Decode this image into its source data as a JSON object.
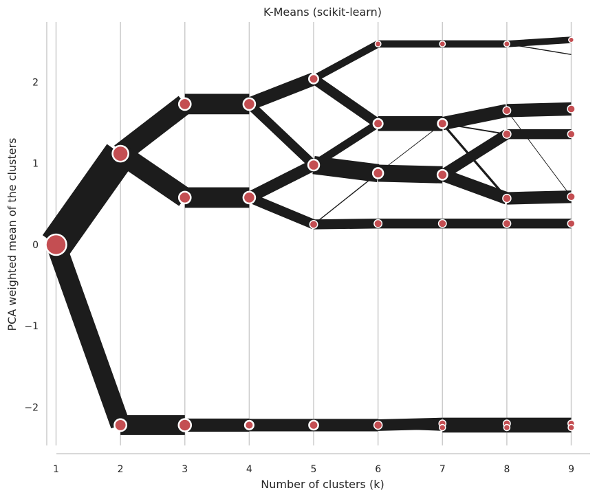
{
  "chart_data": {
    "type": "line",
    "title": "K-Means (scikit-learn)",
    "xlabel": "Number of clusters (k)",
    "ylabel": "PCA weighted mean of the clusters",
    "x_ticks": [
      "1",
      "2",
      "3",
      "4",
      "5",
      "6",
      "7",
      "8",
      "9"
    ],
    "y_ticks": [
      {
        "value": 2,
        "label": "2"
      },
      {
        "value": 1,
        "label": "1"
      },
      {
        "value": 0,
        "label": "0"
      },
      {
        "value": -1,
        "label": "−1"
      },
      {
        "value": -2,
        "label": "−2"
      }
    ],
    "xlim": [
      0.45,
      9.4
    ],
    "ylim": [
      -2.47,
      2.74
    ],
    "grid": "vertical",
    "colors": {
      "edge": "#1c1c1c",
      "node": "#c44e52",
      "node_outline": "#ffffff",
      "grid": "#cccccc",
      "axis": "#cccccc"
    },
    "nodes": [
      {
        "id": "1a",
        "k": 1,
        "y": 0.0,
        "size": 1.0
      },
      {
        "id": "2a",
        "k": 2,
        "y": 1.12,
        "size": 0.77
      },
      {
        "id": "2b",
        "k": 2,
        "y": -2.22,
        "size": 0.58
      },
      {
        "id": "3a",
        "k": 3,
        "y": 1.73,
        "size": 0.57
      },
      {
        "id": "3b",
        "k": 3,
        "y": 0.58,
        "size": 0.57
      },
      {
        "id": "3c",
        "k": 3,
        "y": -2.22,
        "size": 0.6
      },
      {
        "id": "4a",
        "k": 4,
        "y": 1.73,
        "size": 0.57
      },
      {
        "id": "4b",
        "k": 4,
        "y": 0.58,
        "size": 0.57
      },
      {
        "id": "4c",
        "k": 4,
        "y": -2.22,
        "size": 0.42
      },
      {
        "id": "5a",
        "k": 5,
        "y": 2.04,
        "size": 0.45
      },
      {
        "id": "5b",
        "k": 5,
        "y": 0.98,
        "size": 0.53
      },
      {
        "id": "5c",
        "k": 5,
        "y": 0.25,
        "size": 0.38
      },
      {
        "id": "5d",
        "k": 5,
        "y": -2.22,
        "size": 0.44
      },
      {
        "id": "6a",
        "k": 6,
        "y": 2.47,
        "size": 0.28
      },
      {
        "id": "6b",
        "k": 6,
        "y": 1.49,
        "size": 0.45
      },
      {
        "id": "6c",
        "k": 6,
        "y": 0.88,
        "size": 0.5
      },
      {
        "id": "6d",
        "k": 6,
        "y": 0.26,
        "size": 0.38
      },
      {
        "id": "6e",
        "k": 6,
        "y": -2.22,
        "size": 0.4
      },
      {
        "id": "7a",
        "k": 7,
        "y": 2.47,
        "size": 0.28
      },
      {
        "id": "7b",
        "k": 7,
        "y": 1.49,
        "size": 0.45
      },
      {
        "id": "7c",
        "k": 7,
        "y": 0.86,
        "size": 0.48
      },
      {
        "id": "7d",
        "k": 7,
        "y": 0.26,
        "size": 0.38
      },
      {
        "id": "7e",
        "k": 7,
        "y": -2.2,
        "size": 0.34
      },
      {
        "id": "7f",
        "k": 7,
        "y": -2.25,
        "size": 0.3
      },
      {
        "id": "8a",
        "k": 8,
        "y": 2.47,
        "size": 0.28
      },
      {
        "id": "8b",
        "k": 8,
        "y": 1.65,
        "size": 0.38
      },
      {
        "id": "8c",
        "k": 8,
        "y": 1.36,
        "size": 0.4
      },
      {
        "id": "8d",
        "k": 8,
        "y": 0.57,
        "size": 0.4
      },
      {
        "id": "8e",
        "k": 8,
        "y": 0.26,
        "size": 0.38
      },
      {
        "id": "8f",
        "k": 8,
        "y": -2.2,
        "size": 0.34
      },
      {
        "id": "8g",
        "k": 8,
        "y": -2.25,
        "size": 0.3
      },
      {
        "id": "9a",
        "k": 9,
        "y": 2.52,
        "size": 0.25
      },
      {
        "id": "9b",
        "k": 9,
        "y": 2.34,
        "size": 0.0
      },
      {
        "id": "9c",
        "k": 9,
        "y": 1.67,
        "size": 0.37
      },
      {
        "id": "9d",
        "k": 9,
        "y": 1.36,
        "size": 0.35
      },
      {
        "id": "9e",
        "k": 9,
        "y": 0.59,
        "size": 0.37
      },
      {
        "id": "9f",
        "k": 9,
        "y": 0.26,
        "size": 0.35
      },
      {
        "id": "9g",
        "k": 9,
        "y": -2.2,
        "size": 0.32
      },
      {
        "id": "9h",
        "k": 9,
        "y": -2.25,
        "size": 0.3
      }
    ],
    "edges": [
      {
        "from": "1a",
        "to": "2a",
        "weight": 1.0
      },
      {
        "from": "1a",
        "to": "2b",
        "weight": 0.6
      },
      {
        "from": "2a",
        "to": "3a",
        "weight": 0.62
      },
      {
        "from": "2a",
        "to": "3b",
        "weight": 0.62
      },
      {
        "from": "2b",
        "to": "3c",
        "weight": 0.6
      },
      {
        "from": "3a",
        "to": "4a",
        "weight": 0.62
      },
      {
        "from": "3b",
        "to": "4b",
        "weight": 0.62
      },
      {
        "from": "3c",
        "to": "4c",
        "weight": 0.4
      },
      {
        "from": "4a",
        "to": "5a",
        "weight": 0.4
      },
      {
        "from": "4a",
        "to": "5b",
        "weight": 0.28
      },
      {
        "from": "4b",
        "to": "5b",
        "weight": 0.35
      },
      {
        "from": "4b",
        "to": "5c",
        "weight": 0.3
      },
      {
        "from": "4c",
        "to": "5d",
        "weight": 0.38
      },
      {
        "from": "5a",
        "to": "6a",
        "weight": 0.22
      },
      {
        "from": "5a",
        "to": "6b",
        "weight": 0.3
      },
      {
        "from": "5b",
        "to": "6b",
        "weight": 0.24
      },
      {
        "from": "5b",
        "to": "6c",
        "weight": 0.55
      },
      {
        "from": "5c",
        "to": "6c",
        "weight": 0.03
      },
      {
        "from": "5c",
        "to": "6d",
        "weight": 0.3
      },
      {
        "from": "5d",
        "to": "6e",
        "weight": 0.38
      },
      {
        "from": "6a",
        "to": "7a",
        "weight": 0.22
      },
      {
        "from": "6b",
        "to": "7b",
        "weight": 0.45
      },
      {
        "from": "6c",
        "to": "7c",
        "weight": 0.52
      },
      {
        "from": "6c",
        "to": "7b",
        "weight": 0.02
      },
      {
        "from": "6d",
        "to": "7d",
        "weight": 0.3
      },
      {
        "from": "6e",
        "to": "7e",
        "weight": 0.35
      },
      {
        "from": "6e",
        "to": "7f",
        "weight": 0.2
      },
      {
        "from": "7a",
        "to": "8a",
        "weight": 0.22
      },
      {
        "from": "7b",
        "to": "8b",
        "weight": 0.4
      },
      {
        "from": "7b",
        "to": "8c",
        "weight": 0.04
      },
      {
        "from": "7b",
        "to": "8d",
        "weight": 0.07
      },
      {
        "from": "7c",
        "to": "8c",
        "weight": 0.32
      },
      {
        "from": "7c",
        "to": "8d",
        "weight": 0.38
      },
      {
        "from": "7d",
        "to": "8e",
        "weight": 0.3
      },
      {
        "from": "7e",
        "to": "8f",
        "weight": 0.35
      },
      {
        "from": "7f",
        "to": "8g",
        "weight": 0.3
      },
      {
        "from": "8a",
        "to": "9a",
        "weight": 0.2
      },
      {
        "from": "8a",
        "to": "9b",
        "weight": 0.03
      },
      {
        "from": "8b",
        "to": "9c",
        "weight": 0.4
      },
      {
        "from": "8b",
        "to": "9e",
        "weight": 0.02
      },
      {
        "from": "8c",
        "to": "9d",
        "weight": 0.3
      },
      {
        "from": "8d",
        "to": "9e",
        "weight": 0.38
      },
      {
        "from": "8e",
        "to": "9f",
        "weight": 0.3
      },
      {
        "from": "8f",
        "to": "9g",
        "weight": 0.35
      },
      {
        "from": "8g",
        "to": "9h",
        "weight": 0.3
      }
    ]
  }
}
